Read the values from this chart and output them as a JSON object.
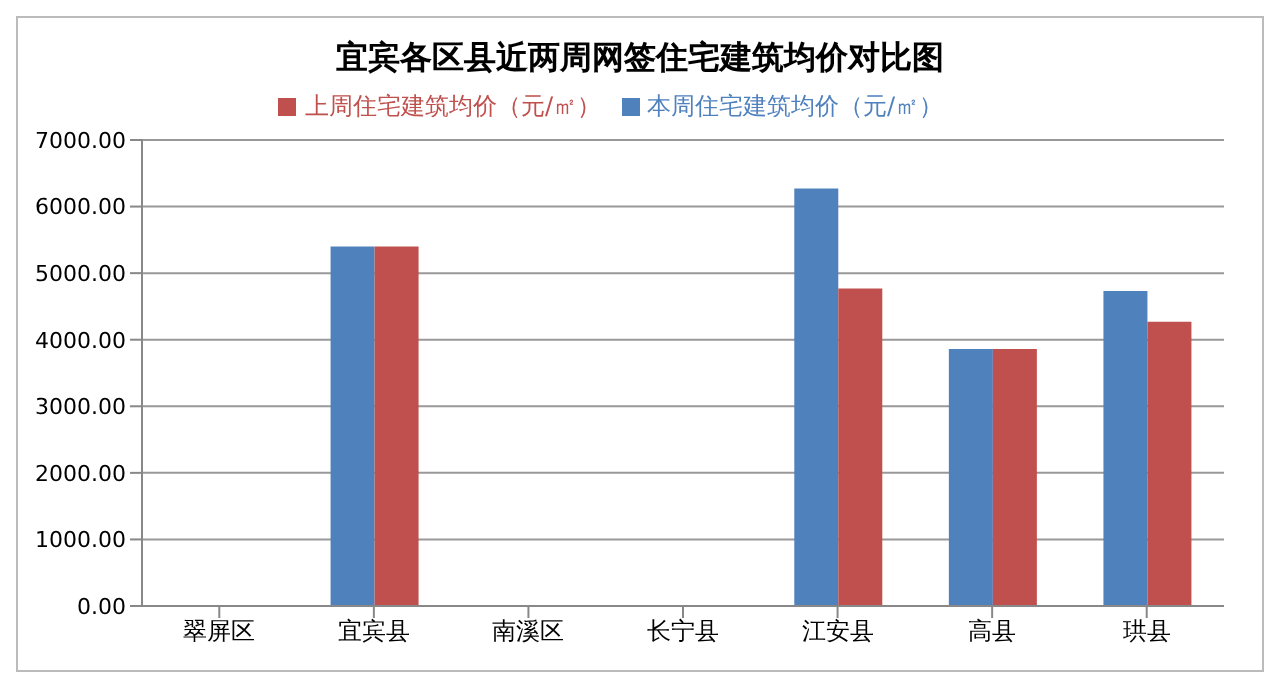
{
  "chart_data": {
    "type": "bar",
    "title": "宜宾各区县近两周网签住宅建筑均价对比图",
    "categories": [
      "翠屏区",
      "宜宾县",
      "南溪区",
      "长宁县",
      "江安县",
      "高县",
      "珙县"
    ],
    "series": [
      {
        "name": "本周住宅建筑均价（元/㎡）",
        "color": "#4f81bd",
        "values": [
          null,
          5400,
          null,
          null,
          6270,
          3860,
          4730
        ]
      },
      {
        "name": "上周住宅建筑均价（元/㎡）",
        "color": "#c0504d",
        "values": [
          null,
          5400,
          null,
          null,
          4770,
          3860,
          4270
        ]
      }
    ],
    "ylim": [
      0,
      7000
    ],
    "yticks": [
      {
        "value": 0,
        "label": "0.00"
      },
      {
        "value": 1000,
        "label": "1000.00"
      },
      {
        "value": 2000,
        "label": "2000.00"
      },
      {
        "value": 3000,
        "label": "3000.00"
      },
      {
        "value": 4000,
        "label": "4000.00"
      },
      {
        "value": 5000,
        "label": "5000.00"
      },
      {
        "value": 6000,
        "label": "6000.00"
      },
      {
        "value": 7000,
        "label": "7000.00"
      }
    ],
    "grid": "y",
    "legend": "top"
  }
}
